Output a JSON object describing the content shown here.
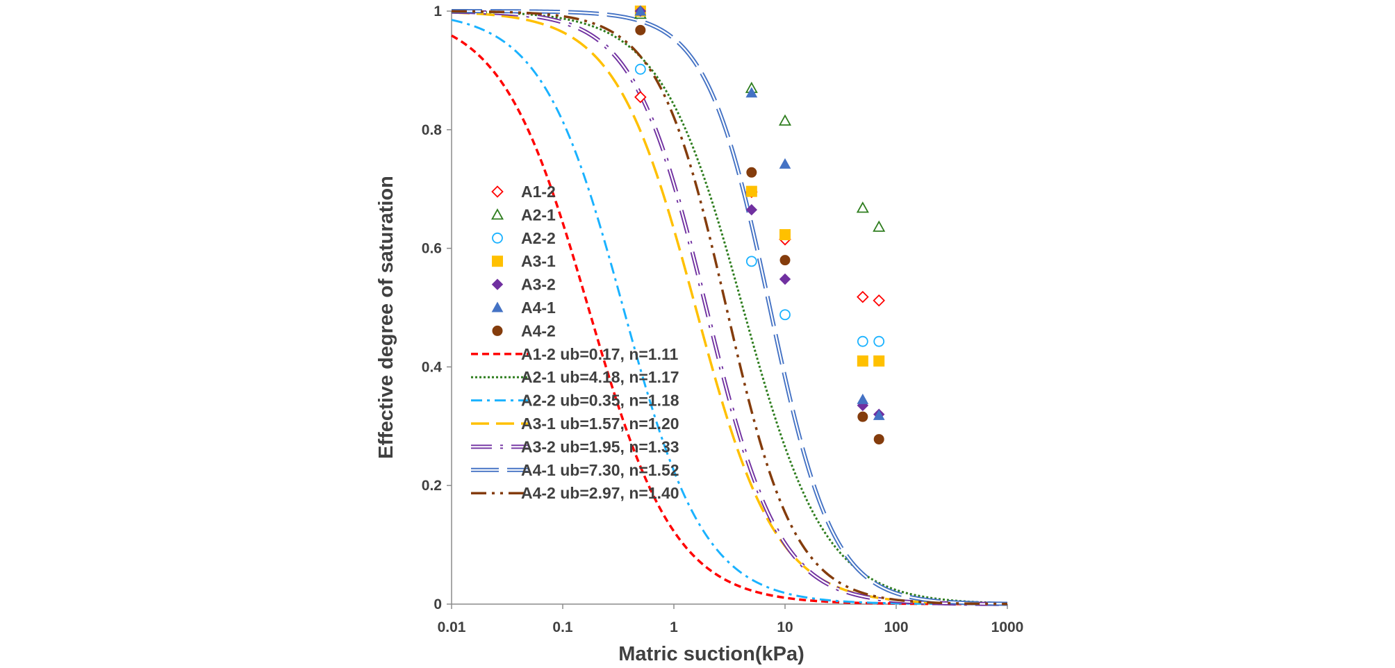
{
  "chart_data": {
    "type": "scatter",
    "xlabel": "Matric suction(kPa)",
    "ylabel": "Effective degree of saturation",
    "xscale": "log",
    "xlim": [
      0.01,
      1000
    ],
    "ylim": [
      0,
      1
    ],
    "x_ticks": [
      "0.01",
      "0.1",
      "1",
      "10",
      "100",
      "1000"
    ],
    "y_ticks": [
      "0",
      "0.2",
      "0.4",
      "0.6",
      "0.8",
      "1"
    ],
    "grid": false,
    "legend_position": "inside-left",
    "points": [
      {
        "name": "A1-2",
        "color": "#ff0000",
        "marker": "diamond-open",
        "x": [
          0.5,
          5,
          10,
          50,
          70
        ],
        "y": [
          0.855,
          0.695,
          0.615,
          0.518,
          0.512
        ]
      },
      {
        "name": "A2-1",
        "color": "#2e7d1e",
        "marker": "triangle-open",
        "x": [
          0.5,
          5,
          10,
          50,
          70
        ],
        "y": [
          0.995,
          0.87,
          0.815,
          0.668,
          0.636
        ]
      },
      {
        "name": "A2-2",
        "color": "#1ab2ff",
        "marker": "circle-open",
        "x": [
          0.5,
          5,
          10,
          50,
          70
        ],
        "y": [
          0.902,
          0.578,
          0.488,
          0.443,
          0.443
        ]
      },
      {
        "name": "A3-1",
        "color": "#ffc000",
        "marker": "square",
        "x": [
          0.5,
          5,
          10,
          50,
          70
        ],
        "y": [
          1.0,
          0.696,
          0.623,
          0.41,
          0.41
        ]
      },
      {
        "name": "A3-2",
        "color": "#7030a0",
        "marker": "diamond",
        "x": [
          0.5,
          5,
          10,
          50,
          70
        ],
        "y": [
          1.0,
          0.665,
          0.548,
          0.335,
          0.32
        ]
      },
      {
        "name": "A4-1",
        "color": "#4472c4",
        "marker": "triangle",
        "x": [
          0.5,
          5,
          10,
          50,
          70
        ],
        "y": [
          1.0,
          0.862,
          0.742,
          0.345,
          0.318
        ]
      },
      {
        "name": "A4-2",
        "color": "#843c0c",
        "marker": "circle",
        "x": [
          0.5,
          5,
          10,
          50,
          70
        ],
        "y": [
          0.968,
          0.728,
          0.58,
          0.316,
          0.278
        ]
      }
    ],
    "fits": [
      {
        "name": "A1-2 ub=0.17, n=1.11",
        "color": "#ff0000",
        "style": "dash",
        "ub": 0.17,
        "n": 1.11
      },
      {
        "name": "A2-1 ub=4.18, n=1.17",
        "color": "#2e7d1e",
        "style": "dot",
        "ub": 4.18,
        "n": 1.17
      },
      {
        "name": "A2-2 ub=0.35, n=1.18",
        "color": "#1ab2ff",
        "style": "dashdot",
        "ub": 0.35,
        "n": 1.18
      },
      {
        "name": "A3-1 ub=1.57, n=1.20",
        "color": "#ffc000",
        "style": "longdash",
        "ub": 1.57,
        "n": 1.2
      },
      {
        "name": "A3-2 ub=1.95, n=1.33",
        "color": "#7030a0",
        "style": "double-dashdot",
        "ub": 1.95,
        "n": 1.33
      },
      {
        "name": "A4-1 ub=7.30, n=1.52",
        "color": "#4472c4",
        "style": "double-longdash",
        "ub": 7.3,
        "n": 1.52
      },
      {
        "name": "A4-2 ub=2.97, n=1.40",
        "color": "#843c0c",
        "style": "longdash-dotdot",
        "ub": 2.97,
        "n": 1.4
      }
    ]
  }
}
